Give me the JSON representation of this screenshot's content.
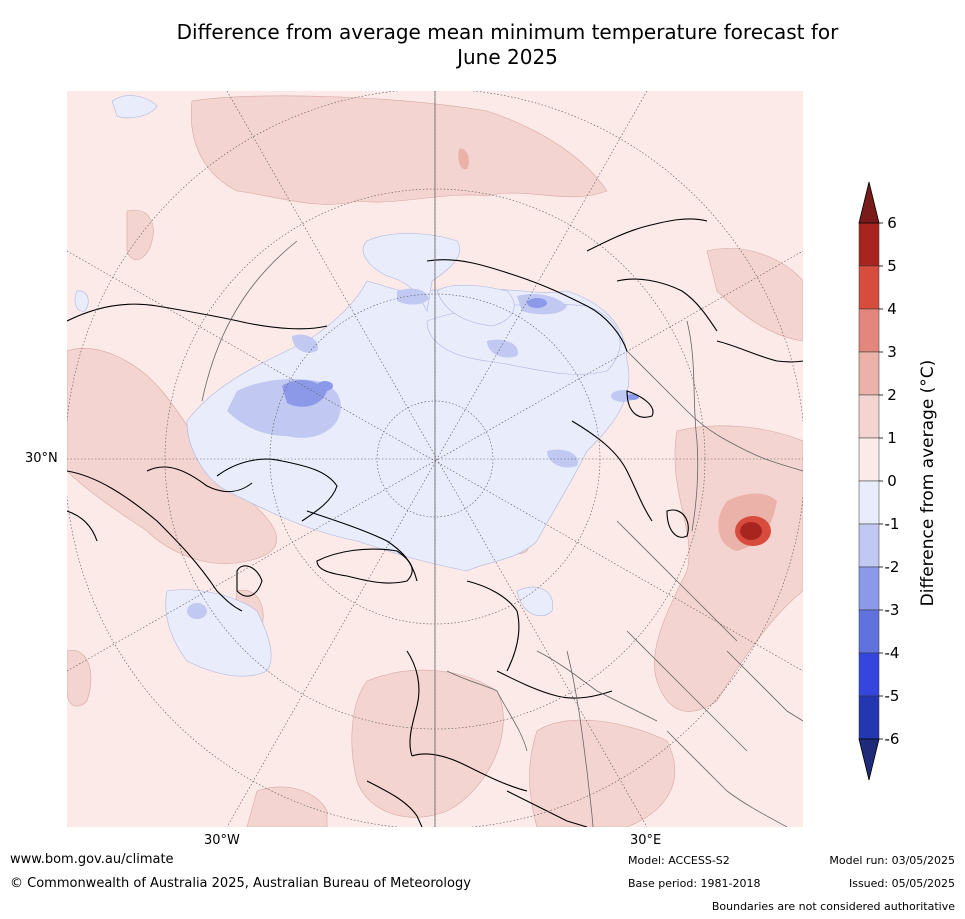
{
  "title_line1": "Difference from average mean minimum temperature forecast for",
  "title_line2": "June 2025",
  "map": {
    "lat_labels": [
      "30°N"
    ],
    "lon_labels": [
      "30°W",
      "30°E"
    ],
    "colors": {
      "land_neutral": "#fbeae8",
      "warm1": "#f4d4d0",
      "warm2": "#ebb2aa",
      "warm3": "#e3877c",
      "warm4": "#d84c3e",
      "warm5": "#a8251f",
      "warm6": "#7a1b1b",
      "cool0": "#e8ecfb",
      "cool1": "#c1c8f1",
      "cool2": "#8c99e9",
      "cool3": "#5f72de",
      "cool4": "#3446de",
      "cool5": "#2337b0",
      "cool6": "#1f2a7a"
    }
  },
  "colorbar": {
    "label": "Difference from average (°C)",
    "ticks": [
      "6",
      "5",
      "4",
      "3",
      "2",
      "1",
      "0",
      "-1",
      "-2",
      "-3",
      "-4",
      "-5",
      "-6"
    ],
    "bins": [
      {
        "from": 6,
        "to": 5,
        "color": "#a8251f"
      },
      {
        "from": 5,
        "to": 4,
        "color": "#d84c3e"
      },
      {
        "from": 4,
        "to": 3,
        "color": "#e3877c"
      },
      {
        "from": 3,
        "to": 2,
        "color": "#ebb2aa"
      },
      {
        "from": 2,
        "to": 1,
        "color": "#f4d4d0"
      },
      {
        "from": 1,
        "to": 0,
        "color": "#fbeae8"
      },
      {
        "from": 0,
        "to": -1,
        "color": "#e8ecfb"
      },
      {
        "from": -1,
        "to": -2,
        "color": "#c1c8f1"
      },
      {
        "from": -2,
        "to": -3,
        "color": "#8c99e9"
      },
      {
        "from": -3,
        "to": -4,
        "color": "#5f72de"
      },
      {
        "from": -4,
        "to": -5,
        "color": "#3446de"
      },
      {
        "from": -5,
        "to": -6,
        "color": "#2337b0"
      }
    ],
    "top_arrow_color": "#7a1b1b",
    "bottom_arrow_color": "#1f2a7a"
  },
  "footer": {
    "website": "www.bom.gov.au/climate",
    "copyright": "© Commonwealth of Australia 2025, Australian Bureau of Meteorology",
    "model": "Model: ACCESS-S2",
    "base_period": "Base period: 1981-2018",
    "model_run": "Model run: 03/05/2025",
    "issued": "Issued: 05/05/2025",
    "disclaimer": "Boundaries are not considered authoritative"
  }
}
